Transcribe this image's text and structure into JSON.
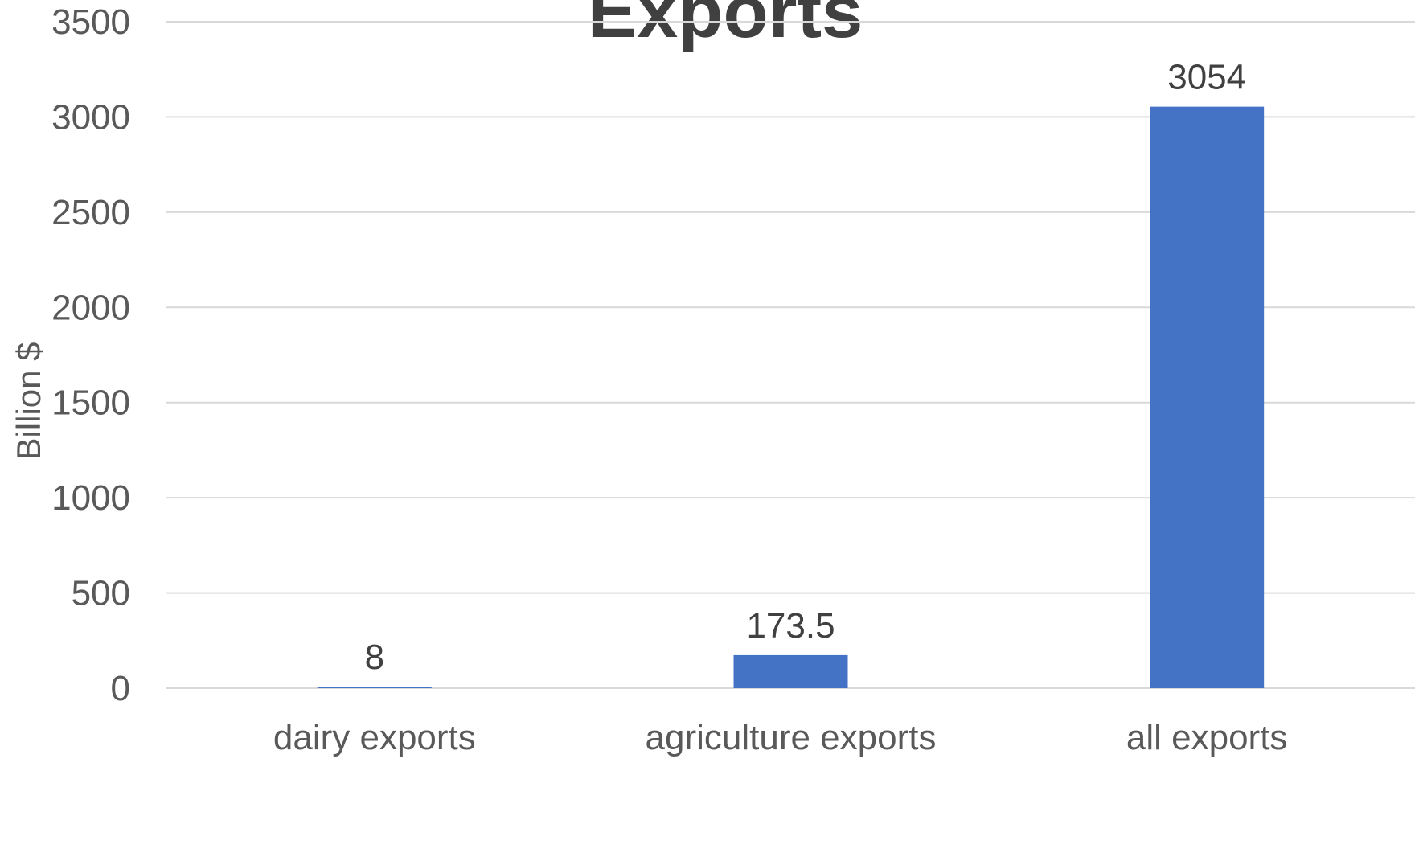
{
  "chart_data": {
    "type": "bar",
    "title": "Exports",
    "ylabel": "Billion $",
    "xlabel": "",
    "categories": [
      "dairy exports",
      "agriculture exports",
      "all exports"
    ],
    "values": [
      8,
      173.5,
      3054
    ],
    "data_labels": [
      "8",
      "173.5",
      "3054"
    ],
    "ylim": [
      0,
      3500
    ],
    "yticks": [
      0,
      500,
      1000,
      1500,
      2000,
      2500,
      3000,
      3500
    ],
    "ytick_labels": [
      "0",
      "500",
      "1000",
      "1500",
      "2000",
      "2500",
      "3000",
      "3500"
    ],
    "grid": true,
    "legend": "none",
    "bar_color": "#4472C4",
    "grid_color": "#D9D9D9"
  }
}
